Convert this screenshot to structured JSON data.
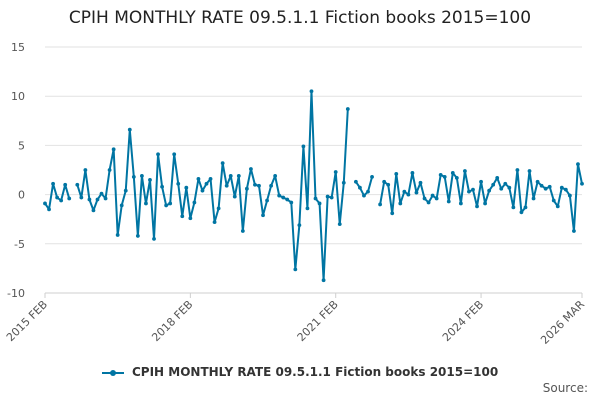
{
  "chart_data": {
    "type": "line",
    "title": "CPIH MONTHLY RATE 09.5.1.1 Fiction books 2015=100",
    "xlabel": "",
    "ylabel": "",
    "ylim": [
      -10,
      15
    ],
    "yticks": [
      -10,
      -5,
      0,
      5,
      10,
      15
    ],
    "x_range": [
      "2015 FEB",
      "2026 MAR"
    ],
    "x_ticks": [
      "2015 FEB",
      "2018 FEB",
      "2021 FEB",
      "2024 FEB",
      "2026 MAR"
    ],
    "grid": true,
    "legend_position": "bottom",
    "series": [
      {
        "name": "CPIH MONTHLY RATE 09.5.1.1 Fiction books 2015=100",
        "color": "#0075a3",
        "values": [
          -0.9,
          -1.5,
          1.1,
          -0.3,
          -0.6,
          1.0,
          -0.4,
          null,
          1.0,
          -0.3,
          2.5,
          -0.5,
          -1.6,
          -0.5,
          0.1,
          -0.4,
          2.5,
          4.6,
          -4.1,
          -1.1,
          0.4,
          6.6,
          1.8,
          -4.2,
          1.9,
          -0.9,
          1.5,
          -4.5,
          4.1,
          0.8,
          -1.1,
          -0.9,
          4.1,
          1.1,
          -2.2,
          0.7,
          -2.4,
          -0.8,
          1.6,
          0.4,
          1.1,
          1.6,
          -2.8,
          -1.4,
          3.2,
          0.9,
          1.9,
          -0.2,
          1.9,
          -3.7,
          0.6,
          2.6,
          1.0,
          0.9,
          -2.1,
          -0.6,
          0.9,
          1.9,
          -0.1,
          -0.3,
          -0.5,
          -0.8,
          -7.6,
          -3.1,
          4.9,
          -1.4,
          10.5,
          -0.4,
          -0.9,
          -8.7,
          -0.2,
          -0.3,
          2.3,
          -3.0,
          1.2,
          8.7,
          null,
          1.3,
          0.7,
          -0.1,
          0.3,
          1.8,
          null,
          -1.0,
          1.3,
          1.0,
          -1.9,
          2.1,
          -0.9,
          0.3,
          0.0,
          2.2,
          0.2,
          1.2,
          -0.4,
          -0.8,
          -0.1,
          -0.4,
          2.0,
          1.8,
          -0.7,
          2.2,
          1.7,
          -0.9,
          2.4,
          0.3,
          0.5,
          -1.2,
          1.3,
          -0.9,
          0.4,
          1.0,
          1.7,
          0.6,
          1.1,
          0.7,
          -1.3,
          2.5,
          -1.8,
          -1.3,
          2.4,
          -0.4,
          1.3,
          0.9,
          0.6,
          0.8,
          -0.6,
          -1.2,
          0.7,
          0.5,
          -0.1,
          -3.7,
          3.1,
          1.1
        ]
      }
    ]
  },
  "legend": {
    "label": "CPIH MONTHLY RATE 09.5.1.1 Fiction books 2015=100"
  },
  "footer": {
    "source_label": "Source:"
  }
}
